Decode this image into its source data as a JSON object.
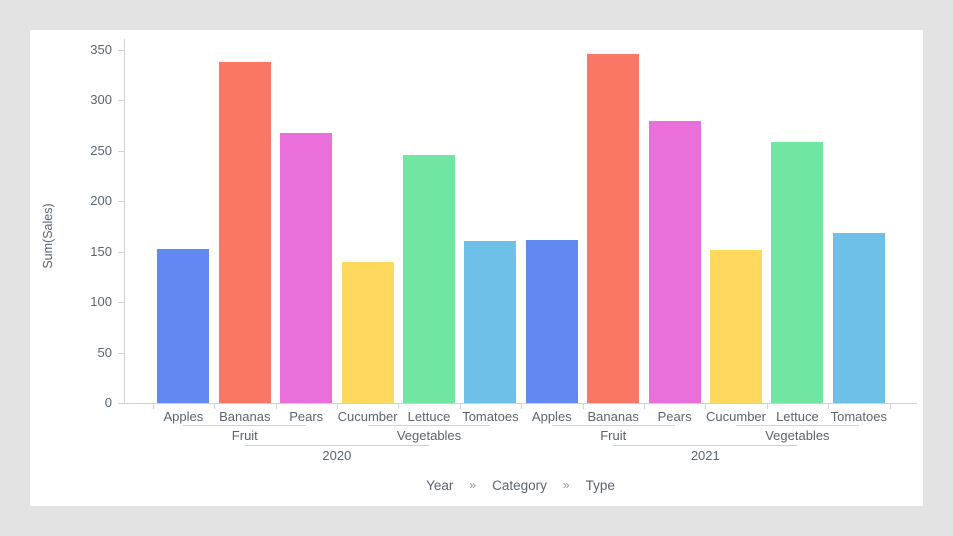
{
  "page": {
    "background_color": "#e3e3e3",
    "card_background_color": "#ffffff",
    "axis_line_color": "#cfd2d6",
    "label_color": "#5a646e"
  },
  "chart": {
    "y_axis_title": "Sum(Sales)"
  },
  "chart_data": {
    "type": "bar",
    "title": "",
    "xlabel": "",
    "ylabel": "Sum(Sales)",
    "ylim": [
      0,
      350
    ],
    "yticks": [
      0,
      50,
      100,
      150,
      200,
      250,
      300,
      350
    ],
    "grid": false,
    "legend": "none",
    "hierarchy_levels": [
      "Year",
      "Category",
      "Type"
    ],
    "bar_colors": [
      "#6289f2",
      "#fa7765",
      "#e970da",
      "#ffd95e",
      "#71e6a2",
      "#6fc0e8"
    ],
    "groups": [
      {
        "year": "2020",
        "categories": [
          {
            "name": "Fruit",
            "types": [
              "Apples",
              "Bananas",
              "Pears"
            ],
            "values": [
              153,
              338,
              268
            ]
          },
          {
            "name": "Vegetables",
            "types": [
              "Cucumber",
              "Lettuce",
              "Tomatoes"
            ],
            "values": [
              140,
              246,
              161
            ]
          }
        ]
      },
      {
        "year": "2021",
        "categories": [
          {
            "name": "Fruit",
            "types": [
              "Apples",
              "Bananas",
              "Pears"
            ],
            "values": [
              162,
              346,
              280
            ]
          },
          {
            "name": "Vegetables",
            "types": [
              "Cucumber",
              "Lettuce",
              "Tomatoes"
            ],
            "values": [
              152,
              259,
              169
            ]
          }
        ]
      }
    ]
  },
  "breadcrumb": {
    "items": [
      "Year",
      "Category",
      "Type"
    ],
    "separator": "»"
  }
}
